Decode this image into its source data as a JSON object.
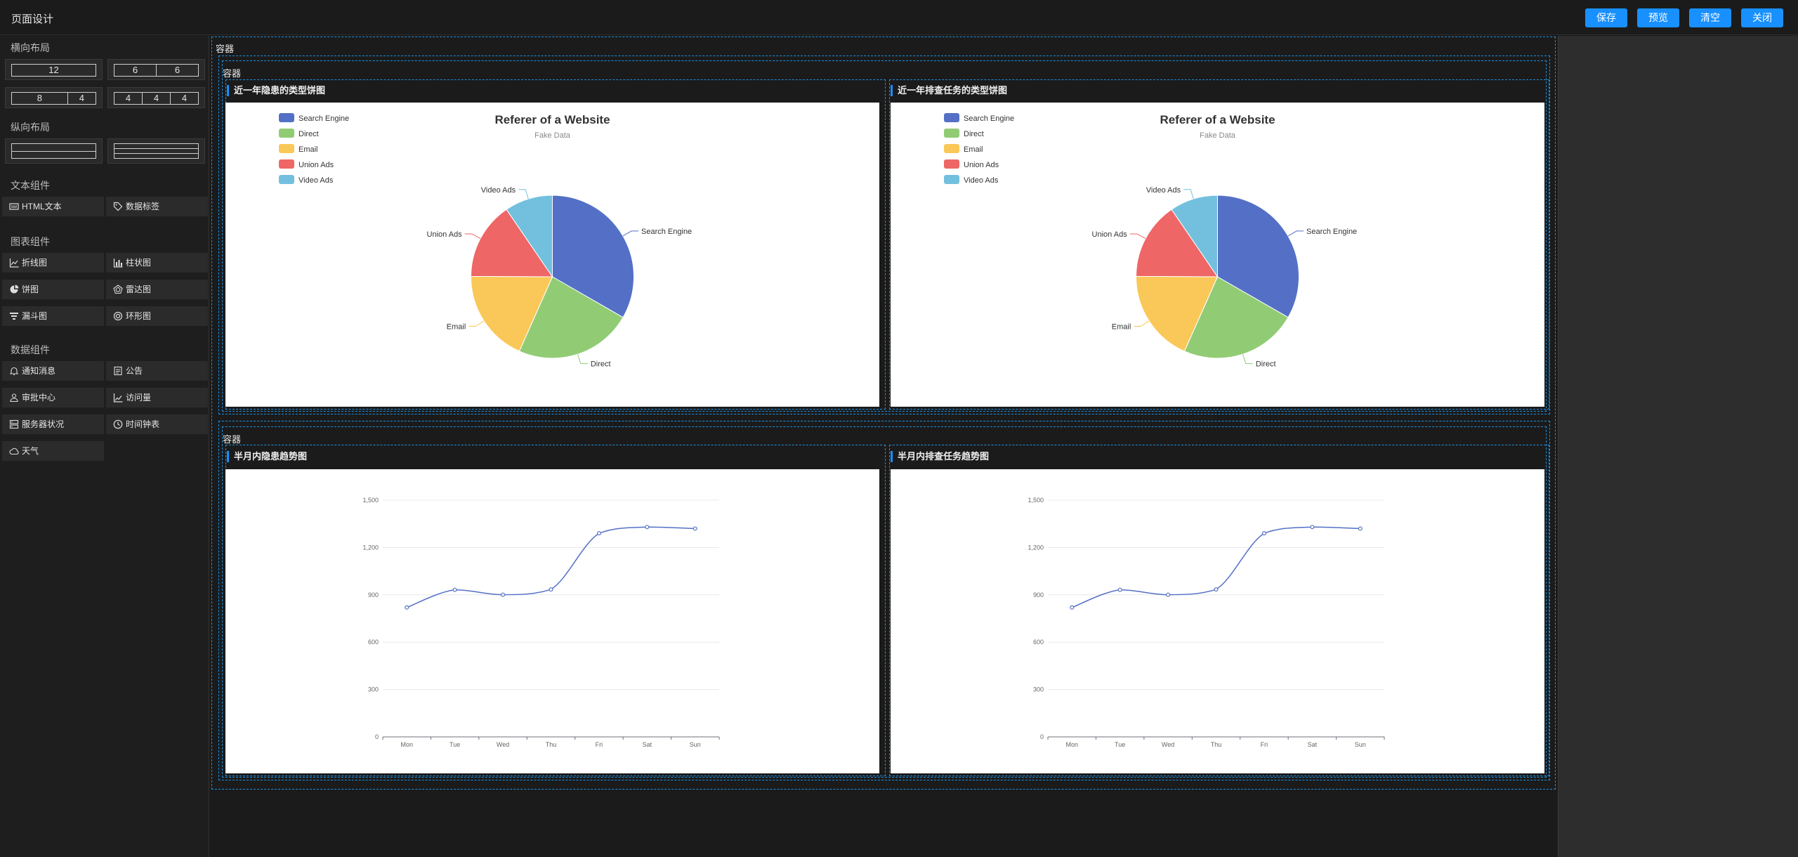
{
  "header": {
    "title": "页面设计",
    "buttons": {
      "save": "保存",
      "preview": "预览",
      "clear": "清空",
      "close": "关闭"
    },
    "accent": "#1890ff"
  },
  "sidebar": {
    "horizontal": {
      "title": "横向布局",
      "options": [
        [
          "12"
        ],
        [
          "6",
          "6"
        ],
        [
          "8",
          "4"
        ],
        [
          "4",
          "4",
          "4"
        ]
      ]
    },
    "vertical": {
      "title": "纵向布局"
    },
    "text": {
      "title": "文本组件",
      "items": [
        {
          "label": "HTML文本",
          "icon": "html-text-icon"
        },
        {
          "label": "数据标签",
          "icon": "tag-icon"
        }
      ]
    },
    "charts": {
      "title": "图表组件",
      "items": [
        {
          "label": "折线图",
          "icon": "line-chart-icon"
        },
        {
          "label": "柱状图",
          "icon": "bar-chart-icon"
        },
        {
          "label": "饼图",
          "icon": "pie-chart-icon"
        },
        {
          "label": "雷达图",
          "icon": "radar-chart-icon"
        },
        {
          "label": "漏斗图",
          "icon": "funnel-chart-icon"
        },
        {
          "label": "环形图",
          "icon": "ring-chart-icon"
        }
      ]
    },
    "data": {
      "title": "数据组件",
      "items": [
        {
          "label": "通知消息",
          "icon": "bell-icon"
        },
        {
          "label": "公告",
          "icon": "notice-icon"
        },
        {
          "label": "审批中心",
          "icon": "approval-icon"
        },
        {
          "label": "访问量",
          "icon": "visits-icon"
        },
        {
          "label": "服务器状况",
          "icon": "server-icon"
        },
        {
          "label": "时间钟表",
          "icon": "clock-icon"
        },
        {
          "label": "天气",
          "icon": "weather-icon"
        }
      ]
    }
  },
  "canvas": {
    "outer_label": "容器",
    "containers": [
      {
        "label": "容器",
        "titles": [
          "近一年隐患的类型饼图",
          "近一年排查任务的类型饼图"
        ]
      },
      {
        "label": "容器",
        "titles": [
          "半月内隐患趋势图",
          "半月内排查任务趋势图"
        ]
      }
    ]
  },
  "chart_data": [
    {
      "type": "pie",
      "title": "Referer of a Website",
      "subtitle": "Fake Data",
      "legend_position": "top-left",
      "categories": [
        "Search Engine",
        "Direct",
        "Email",
        "Union Ads",
        "Video Ads"
      ],
      "values": [
        1048,
        735,
        580,
        484,
        300
      ],
      "colors": [
        "#5470c6",
        "#91cc75",
        "#fac858",
        "#ee6666",
        "#73c0de"
      ]
    },
    {
      "type": "pie",
      "title": "Referer of a Website",
      "subtitle": "Fake Data",
      "legend_position": "top-left",
      "categories": [
        "Search Engine",
        "Direct",
        "Email",
        "Union Ads",
        "Video Ads"
      ],
      "values": [
        1048,
        735,
        580,
        484,
        300
      ],
      "colors": [
        "#5470c6",
        "#91cc75",
        "#fac858",
        "#ee6666",
        "#73c0de"
      ]
    },
    {
      "type": "line",
      "smooth": true,
      "categories": [
        "Mon",
        "Tue",
        "Wed",
        "Thu",
        "Fri",
        "Sat",
        "Sun"
      ],
      "values": [
        820,
        932,
        901,
        934,
        1290,
        1330,
        1320
      ],
      "ylim": [
        0,
        1500
      ],
      "yticks": [
        "0",
        "300",
        "600",
        "900",
        "1,200",
        "1,500"
      ],
      "grid": true,
      "color": "#5470c6"
    },
    {
      "type": "line",
      "smooth": true,
      "categories": [
        "Mon",
        "Tue",
        "Wed",
        "Thu",
        "Fri",
        "Sat",
        "Sun"
      ],
      "values": [
        820,
        932,
        901,
        934,
        1290,
        1330,
        1320
      ],
      "ylim": [
        0,
        1500
      ],
      "yticks": [
        "0",
        "300",
        "600",
        "900",
        "1,200",
        "1,500"
      ],
      "grid": true,
      "color": "#5470c6"
    }
  ]
}
